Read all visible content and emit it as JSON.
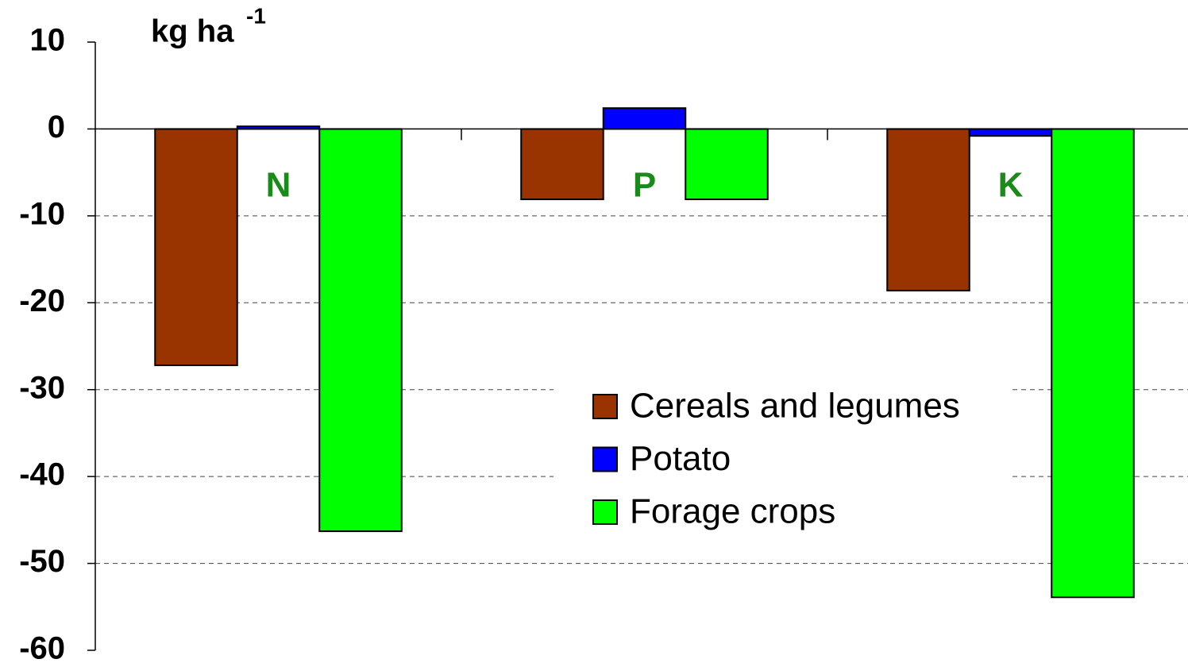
{
  "chart_data": {
    "type": "bar",
    "ylabel": "kg ha",
    "ylabel_sup": "-1",
    "categories": [
      "N",
      "P",
      "K"
    ],
    "series": [
      {
        "name": "Cereals and legumes",
        "color": "#993300",
        "values": [
          -27.2,
          -8.1,
          -18.6
        ]
      },
      {
        "name": "Potato",
        "color": "#0000ff",
        "values": [
          0.3,
          2.4,
          -0.8
        ]
      },
      {
        "name": "Forage crops",
        "color": "#00ff00",
        "values": [
          -46.3,
          -8.1,
          -53.9
        ]
      }
    ],
    "ylim": [
      -60,
      10
    ],
    "yticks": [
      10,
      0,
      -10,
      -20,
      -30,
      -40,
      -50,
      -60
    ],
    "grid": true
  }
}
